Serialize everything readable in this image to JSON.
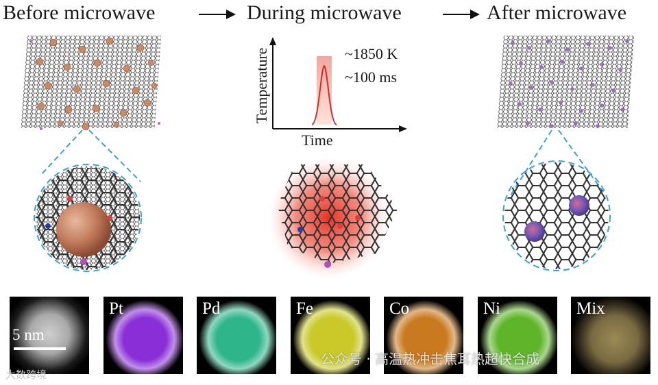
{
  "titles": {
    "before": "Before microwave",
    "during": "During microwave",
    "after": "After microwave"
  },
  "graph": {
    "ylabel": "Temperature",
    "xlabel": "Time",
    "temperature": "~1850 K",
    "duration": "~100 ms"
  },
  "eds": {
    "scale_label": "5 nm",
    "panels": [
      {
        "label": "",
        "color": "#b8b8b8"
      },
      {
        "label": "Pt",
        "color": "#8a2fd8"
      },
      {
        "label": "Pd",
        "color": "#2fb58a"
      },
      {
        "label": "Fe",
        "color": "#c9c92a"
      },
      {
        "label": "Co",
        "color": "#c97a1f"
      },
      {
        "label": "Ni",
        "color": "#5fb52a"
      },
      {
        "label": "Mix",
        "color": "#8a7a4a"
      }
    ]
  },
  "watermark": {
    "main": "公众号 · 高温热冲击焦耳热超快合成",
    "small": "大数跨境"
  },
  "colors": {
    "large_particle": "#c98a68",
    "small_particle": "#9a5fc0",
    "heat_glow": "#e83a2a",
    "dashed_outline": "#3aa0d8",
    "lattice": "#2a2a2a"
  }
}
